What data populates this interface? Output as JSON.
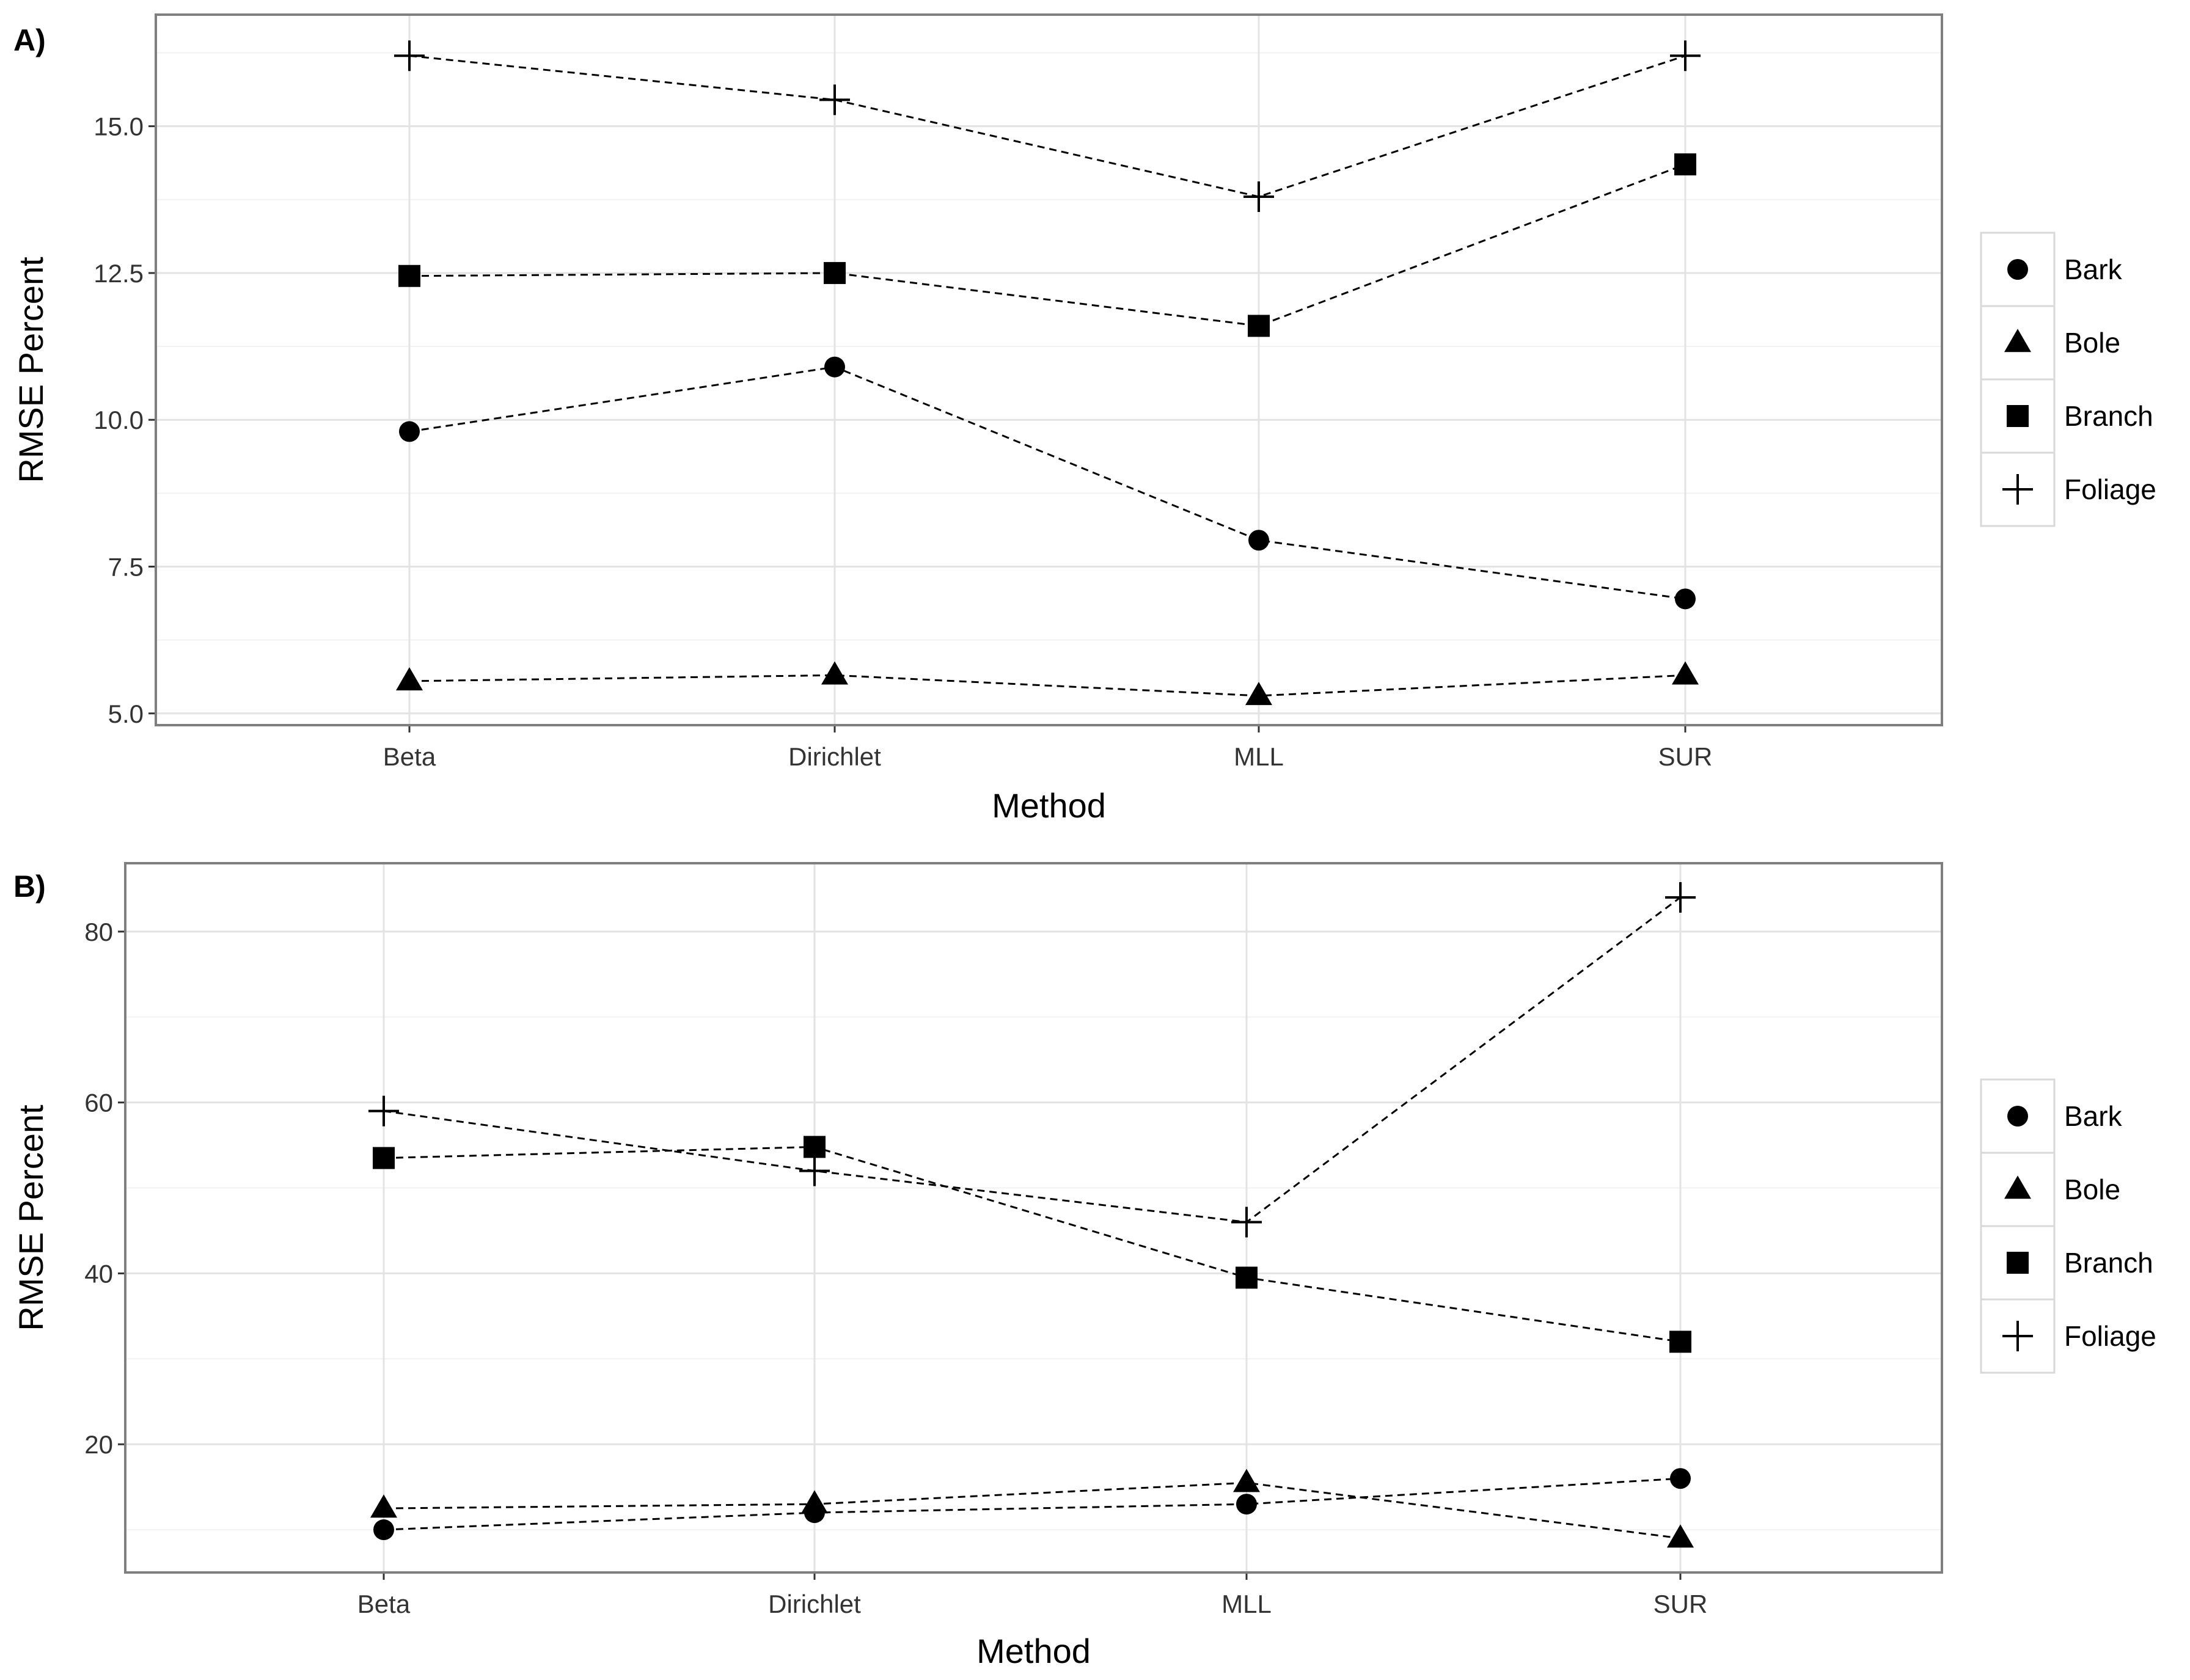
{
  "chart_data": [
    {
      "panel": "A)",
      "type": "line",
      "xlabel": "Method",
      "ylabel": "RMSE Percent",
      "categories": [
        "Beta",
        "Dirichlet",
        "MLL",
        "SUR"
      ],
      "ylim": [
        4.8,
        16.9
      ],
      "yticks": [
        5.0,
        7.5,
        10.0,
        12.5,
        15.0
      ],
      "ytick_labels": [
        "5.0",
        "7.5",
        "10.0",
        "12.5",
        "15.0"
      ],
      "grid": true,
      "legend_position": "right",
      "series": [
        {
          "name": "Bark",
          "marker": "circle",
          "values": [
            9.8,
            10.9,
            7.95,
            6.95
          ]
        },
        {
          "name": "Bole",
          "marker": "triangle",
          "values": [
            5.55,
            5.65,
            5.3,
            5.65
          ]
        },
        {
          "name": "Branch",
          "marker": "square",
          "values": [
            12.45,
            12.5,
            11.6,
            14.35
          ]
        },
        {
          "name": "Foliage",
          "marker": "plus",
          "values": [
            16.2,
            15.45,
            13.8,
            16.2
          ]
        }
      ]
    },
    {
      "panel": "B)",
      "type": "line",
      "xlabel": "Method",
      "ylabel": "RMSE Percent",
      "categories": [
        "Beta",
        "Dirichlet",
        "MLL",
        "SUR"
      ],
      "ylim": [
        5,
        88
      ],
      "yticks": [
        20,
        40,
        60,
        80
      ],
      "ytick_labels": [
        "20",
        "40",
        "60",
        "80"
      ],
      "grid": true,
      "legend_position": "right",
      "series": [
        {
          "name": "Bark",
          "marker": "circle",
          "values": [
            10,
            12,
            13,
            16
          ]
        },
        {
          "name": "Bole",
          "marker": "triangle",
          "values": [
            12.5,
            13,
            15.5,
            9
          ]
        },
        {
          "name": "Branch",
          "marker": "square",
          "values": [
            53.5,
            54.8,
            39.5,
            32
          ]
        },
        {
          "name": "Foliage",
          "marker": "plus",
          "values": [
            59,
            52,
            46,
            84
          ]
        }
      ]
    }
  ]
}
